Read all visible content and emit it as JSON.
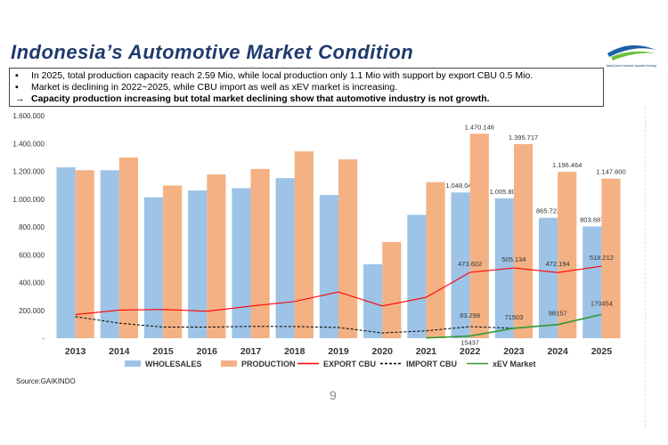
{
  "title": "Indonesia’s Automotive Market Condition",
  "logo": {
    "caption": "National Center for Sustainable Transportation Technology"
  },
  "bullets": [
    {
      "marker": "▪",
      "text": "In 2025, total production capacity reach 2.59 Mio, while local production only 1.1 Mio with support by export CBU 0.5 Mio.",
      "bold": false
    },
    {
      "marker": "▪",
      "text": "Market is declining in 2022~2025, while CBU import as well as xEV market is increasing.",
      "bold": false
    },
    {
      "marker": "→",
      "text": "Capacity production increasing but total market declining show that automotive industry is not growth.",
      "bold": true
    }
  ],
  "source": "Source:GAIKINDO",
  "page_number": "9",
  "chart_data": {
    "type": "bar",
    "categories": [
      "2013",
      "2014",
      "2015",
      "2016",
      "2017",
      "2018",
      "2019",
      "2020",
      "2021",
      "2022",
      "2023",
      "2024",
      "2025"
    ],
    "ylim": [
      0,
      1600000
    ],
    "yticks": [
      "-",
      "200.000",
      "400.000",
      "600.000",
      "800.000",
      "1.000.000",
      "1.200.000",
      "1.400.000",
      "1.600.000"
    ],
    "grid": false,
    "legend_position": "bottom",
    "colors": {
      "wholesales": "#9dc3e6",
      "production": "#f4b183",
      "export": "#ff0000",
      "import": "#000000",
      "xev": "#339933"
    },
    "series": [
      {
        "name": "WHOLESALES",
        "kind": "bar",
        "values": [
          1229000,
          1208000,
          1013000,
          1062000,
          1079000,
          1151000,
          1030000,
          532000,
          887000,
          1048040,
          1005802,
          865723,
          803687
        ],
        "labels": [
          "",
          "",
          "",
          "",
          "",
          "",
          "",
          "",
          "",
          "1.048.040",
          "1.005.802",
          "865.723",
          "803.687"
        ]
      },
      {
        "name": "PRODUCTION",
        "kind": "bar",
        "values": [
          1208000,
          1299000,
          1098000,
          1177000,
          1217000,
          1343000,
          1286000,
          691000,
          1122000,
          1470146,
          1395717,
          1196464,
          1147600
        ],
        "labels": [
          "",
          "",
          "",
          "",
          "",
          "",
          "",
          "",
          "",
          "1.470.146",
          "1.395.717",
          "1.196.464",
          "1.147.600"
        ]
      },
      {
        "name": "EXPORT CBU",
        "kind": "line",
        "values": [
          170000,
          202000,
          207000,
          194000,
          231000,
          264000,
          332000,
          232000,
          294000,
          473602,
          505134,
          472194,
          518212
        ],
        "labels": [
          "",
          "",
          "",
          "",
          "",
          "",
          "",
          "",
          "",
          "473.602",
          "505.134",
          "472.194",
          "518.212"
        ]
      },
      {
        "name": "IMPORT CBU",
        "kind": "dashed-line",
        "values": [
          155000,
          108000,
          80000,
          80000,
          85000,
          84000,
          77000,
          38000,
          53000,
          83298,
          71503,
          98157,
          170454
        ],
        "labels": [
          "",
          "",
          "",
          "",
          "",
          "",
          "",
          "",
          "",
          "83.298",
          "71503",
          "98157",
          "170454"
        ]
      },
      {
        "name": "xEV Market",
        "kind": "line",
        "start_index": 8,
        "values": [
          null,
          null,
          null,
          null,
          null,
          null,
          null,
          null,
          2000,
          15437,
          71503,
          98157,
          170454
        ],
        "labels": [
          "",
          "",
          "",
          "",
          "",
          "",
          "",
          "",
          "",
          "15437",
          "",
          "",
          ""
        ]
      }
    ]
  }
}
